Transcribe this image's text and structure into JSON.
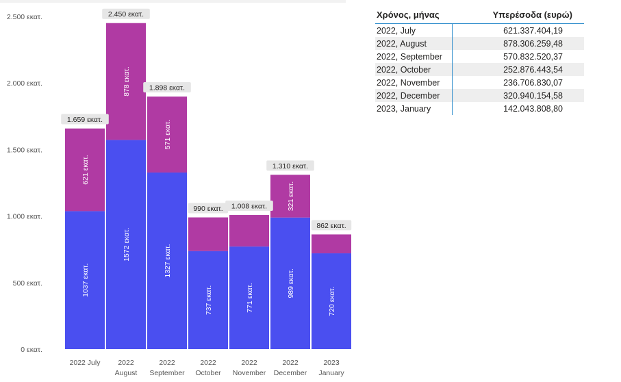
{
  "chart_data": {
    "type": "bar",
    "stacked": true,
    "categories": [
      [
        "2022 July"
      ],
      [
        "2022",
        "August"
      ],
      [
        "2022",
        "September"
      ],
      [
        "2022",
        "October"
      ],
      [
        "2022",
        "November"
      ],
      [
        "2022",
        "December"
      ],
      [
        "2023",
        "January"
      ]
    ],
    "series": [
      {
        "color": "#4a4ff0",
        "values": [
          1037,
          1572,
          1327,
          737,
          771,
          989,
          720
        ],
        "value_labels": [
          "1037 εκατ.",
          "1572 εκατ.",
          "1327 εκατ.",
          "737 εκατ.",
          "771 εκατ.",
          "989 εκατ.",
          "720 εκατ."
        ]
      },
      {
        "color": "#b03aa3",
        "values": [
          621,
          878,
          571,
          253,
          237,
          321,
          142
        ],
        "value_labels": [
          "621 εκατ.",
          "878 εκατ.",
          "571 εκατ.",
          "",
          "",
          "321 εκατ.",
          ""
        ]
      }
    ],
    "totals": [
      1659,
      2450,
      1898,
      990,
      1008,
      1310,
      862
    ],
    "total_labels": [
      "1.659 εκατ.",
      "2.450 εκατ.",
      "1.898 εκατ.",
      "990 εκατ.",
      "1.008 εκατ.",
      "1.310 εκατ.",
      "862 εκατ."
    ],
    "ylim": [
      0,
      2500
    ],
    "yticks": [
      0,
      500,
      1000,
      1500,
      2000,
      2500
    ],
    "ytick_labels": [
      "0 εκατ.",
      "500 εκατ.",
      "1.000 εκατ.",
      "1.500 εκατ.",
      "2.000 εκατ.",
      "2.500 εκατ."
    ],
    "grid": false,
    "title": "",
    "xlabel": "",
    "ylabel": ""
  },
  "table": {
    "headers": [
      "Χρόνος, μήνας",
      "Υπερέσοδα (ευρώ)"
    ],
    "rows": [
      [
        "2022, July",
        "621.337.404,19"
      ],
      [
        "2022, August",
        "878.306.259,48"
      ],
      [
        "2022, September",
        "570.832.520,37"
      ],
      [
        "2022, October",
        "252.876.443,54"
      ],
      [
        "2022, November",
        "236.706.830,07"
      ],
      [
        "2022, December",
        "320.940.154,58"
      ],
      [
        "2023, January",
        "142.043.808,80"
      ]
    ]
  }
}
